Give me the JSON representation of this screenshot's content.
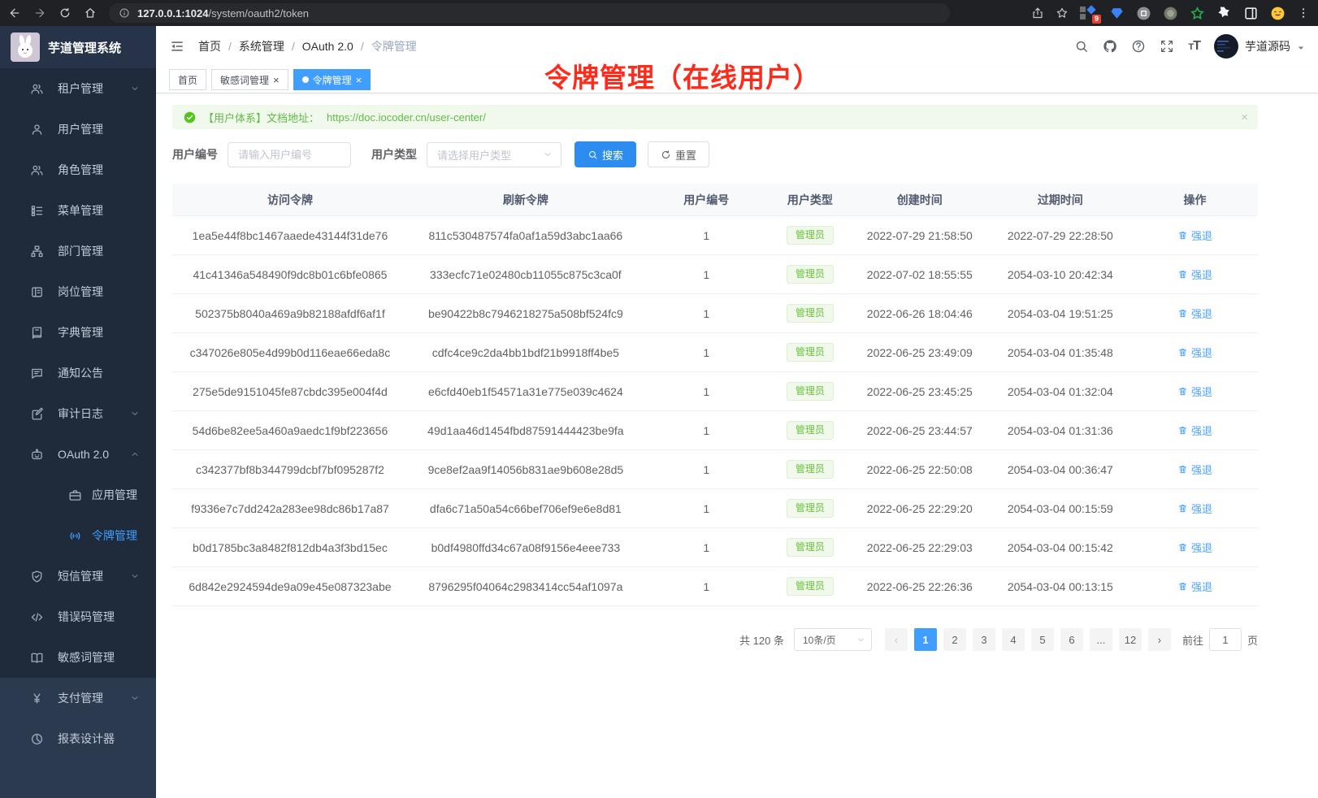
{
  "colors": {
    "accent": "#409eff",
    "success": "#67c23a",
    "annotation_red": "#fe2b1b",
    "badge_red": "#e94235"
  },
  "browser": {
    "url_host": "127.0.0.1:1024",
    "url_path": "/system/oauth2/token",
    "extension_badge": "9"
  },
  "app": {
    "title": "芋道管理系统"
  },
  "topbar": {
    "breadcrumb": [
      "首页",
      "系统管理",
      "OAuth 2.0",
      "令牌管理"
    ],
    "user_name": "芋道源码"
  },
  "tabs": [
    {
      "key": "home",
      "label": "首页",
      "active": false,
      "closable": false
    },
    {
      "key": "sensitive-word",
      "label": "敏感词管理",
      "active": false,
      "closable": true
    },
    {
      "key": "token",
      "label": "令牌管理",
      "active": true,
      "closable": true
    }
  ],
  "annotation": {
    "text": "令牌管理（在线用户）",
    "color": "#fe2b1b"
  },
  "alert": {
    "text": "【用户体系】文档地址：",
    "link": "https://doc.iocoder.cn/user-center/",
    "close": "×"
  },
  "filter": {
    "user_id_label": "用户编号",
    "user_id_placeholder": "请输入用户编号",
    "user_type_label": "用户类型",
    "user_type_placeholder": "请选择用户类型",
    "search_label": "搜索",
    "reset_label": "重置"
  },
  "sidebar": {
    "items": [
      {
        "key": "tenant",
        "icon": "tenant-icon",
        "label": "租户管理",
        "chevron": "down"
      },
      {
        "key": "user",
        "icon": "user-icon",
        "label": "用户管理"
      },
      {
        "key": "role",
        "icon": "role-icon",
        "label": "角色管理"
      },
      {
        "key": "menu",
        "icon": "menu-icon",
        "label": "菜单管理"
      },
      {
        "key": "dept",
        "icon": "dept-icon",
        "label": "部门管理"
      },
      {
        "key": "post",
        "icon": "post-icon",
        "label": "岗位管理"
      },
      {
        "key": "dict",
        "icon": "dict-icon",
        "label": "字典管理"
      },
      {
        "key": "notice",
        "icon": "notice-icon",
        "label": "通知公告"
      },
      {
        "key": "audit",
        "icon": "audit-icon",
        "label": "审计日志",
        "chevron": "down"
      },
      {
        "key": "oauth2",
        "icon": "oauth-icon",
        "label": "OAuth 2.0",
        "chevron": "up"
      },
      {
        "key": "oauth2-app",
        "icon": "app-icon",
        "label": "应用管理",
        "sub": true
      },
      {
        "key": "oauth2-token",
        "icon": "token-icon",
        "label": "令牌管理",
        "sub": true,
        "active": true
      },
      {
        "key": "sms",
        "icon": "sms-icon",
        "label": "短信管理",
        "chevron": "down"
      },
      {
        "key": "errcode",
        "icon": "errcode-icon",
        "label": "错误码管理"
      },
      {
        "key": "sensitive",
        "icon": "sensitive-icon",
        "label": "敏感词管理"
      },
      {
        "key": "pay",
        "icon": "pay-icon",
        "label": "支付管理",
        "chevron": "down",
        "section": "light"
      },
      {
        "key": "report",
        "icon": "report-icon",
        "label": "报表设计器",
        "section": "light"
      }
    ]
  },
  "table": {
    "headers": [
      "访问令牌",
      "刷新令牌",
      "用户编号",
      "用户类型",
      "创建时间",
      "过期时间",
      "操作"
    ],
    "action_label": "强退",
    "rows": [
      {
        "access_token": "1ea5e44f8bc1467aaede43144f31de76",
        "refresh_token": "811c530487574fa0af1a59d3abc1aa66",
        "user_id": "1",
        "user_type": "管理员",
        "create_time": "2022-07-29 21:58:50",
        "expire_time": "2022-07-29 22:28:50"
      },
      {
        "access_token": "41c41346a548490f9dc8b01c6bfe0865",
        "refresh_token": "333ecfc71e02480cb11055c875c3ca0f",
        "user_id": "1",
        "user_type": "管理员",
        "create_time": "2022-07-02 18:55:55",
        "expire_time": "2054-03-10 20:42:34"
      },
      {
        "access_token": "502375b8040a469a9b82188afdf6af1f",
        "refresh_token": "be90422b8c7946218275a508bf524fc9",
        "user_id": "1",
        "user_type": "管理员",
        "create_time": "2022-06-26 18:04:46",
        "expire_time": "2054-03-04 19:51:25"
      },
      {
        "access_token": "c347026e805e4d99b0d116eae66eda8c",
        "refresh_token": "cdfc4ce9c2da4bb1bdf21b9918ff4be5",
        "user_id": "1",
        "user_type": "管理员",
        "create_time": "2022-06-25 23:49:09",
        "expire_time": "2054-03-04 01:35:48"
      },
      {
        "access_token": "275e5de9151045fe87cbdc395e004f4d",
        "refresh_token": "e6cfd40eb1f54571a31e775e039c4624",
        "user_id": "1",
        "user_type": "管理员",
        "create_time": "2022-06-25 23:45:25",
        "expire_time": "2054-03-04 01:32:04"
      },
      {
        "access_token": "54d6be82ee5a460a9aedc1f9bf223656",
        "refresh_token": "49d1aa46d1454fbd87591444423be9fa",
        "user_id": "1",
        "user_type": "管理员",
        "create_time": "2022-06-25 23:44:57",
        "expire_time": "2054-03-04 01:31:36"
      },
      {
        "access_token": "c342377bf8b344799dcbf7bf095287f2",
        "refresh_token": "9ce8ef2aa9f14056b831ae9b608e28d5",
        "user_id": "1",
        "user_type": "管理员",
        "create_time": "2022-06-25 22:50:08",
        "expire_time": "2054-03-04 00:36:47"
      },
      {
        "access_token": "f9336e7c7dd242a283ee98dc86b17a87",
        "refresh_token": "dfa6c71a50a54c66bef706ef9e6e8d81",
        "user_id": "1",
        "user_type": "管理员",
        "create_time": "2022-06-25 22:29:20",
        "expire_time": "2054-03-04 00:15:59"
      },
      {
        "access_token": "b0d1785bc3a8482f812db4a3f3bd15ec",
        "refresh_token": "b0df4980ffd34c67a08f9156e4eee733",
        "user_id": "1",
        "user_type": "管理员",
        "create_time": "2022-06-25 22:29:03",
        "expire_time": "2054-03-04 00:15:42"
      },
      {
        "access_token": "6d842e2924594de9a09e45e087323abe",
        "refresh_token": "8796295f04064c2983414cc54af1097a",
        "user_id": "1",
        "user_type": "管理员",
        "create_time": "2022-06-25 22:26:36",
        "expire_time": "2054-03-04 00:13:15"
      }
    ]
  },
  "pagination": {
    "total_text": "共 120 条",
    "page_size": "10条/页",
    "prev": "‹",
    "next": "›",
    "pages": [
      "1",
      "2",
      "3",
      "4",
      "5",
      "6",
      "...",
      "12"
    ],
    "active_page": "1",
    "goto_label": "前往",
    "goto_value": "1",
    "goto_suffix": "页"
  },
  "icons": {
    "search-icon": "magnifier",
    "github-icon": "octocat",
    "help-icon": "question-circle",
    "fullscreen-icon": "expand-arrows",
    "fontsize-icon": "Tt",
    "back-icon": "arrow-left",
    "forward-icon": "arrow-right",
    "reload-icon": "refresh",
    "home-icon": "house",
    "info-icon": "i-in-circle",
    "share-icon": "box-up-arrow",
    "bookmark-star-icon": "star",
    "more-vertical-icon": "3-dots",
    "success-icon": "green-check-circle",
    "trash-icon": "trash-can",
    "refresh-icon": "circular-arrow",
    "chevron-down-icon": "v",
    "chevron-up-icon": "^",
    "caret-down-icon": "filled-triangle",
    "hamburger-fold-icon": "3-bars-collapse"
  }
}
